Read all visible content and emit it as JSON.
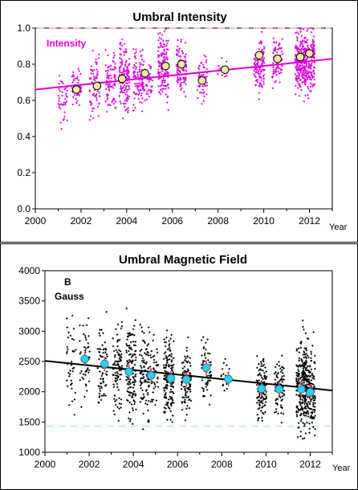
{
  "chart_data": [
    {
      "type": "scatter",
      "title": "Umbral Intensity",
      "xlabel": "Year",
      "ylabel": "",
      "xlim": [
        2000,
        2013
      ],
      "ylim": [
        0.0,
        1.0
      ],
      "x_ticks": [
        "2000",
        "2002",
        "2004",
        "2006",
        "2008",
        "2010",
        "2012"
      ],
      "y_ticks": [
        "0.0",
        "0.2",
        "0.4",
        "0.6",
        "0.8",
        "1.0"
      ],
      "annotation": "Intensity",
      "colors": {
        "points": "#e000e0",
        "trend": "#e000e0",
        "reference": "#ffc0c0",
        "means_fill": "#f2e6a0"
      },
      "reference_line": 1.0,
      "trend": {
        "x": [
          2000,
          2013
        ],
        "y": [
          0.66,
          0.83
        ]
      },
      "clusters": [
        {
          "x": 2001.2,
          "mean": 0.62,
          "spread": 0.06,
          "n": 40
        },
        {
          "x": 2001.8,
          "mean": 0.66,
          "spread": 0.06,
          "n": 50
        },
        {
          "x": 2002.6,
          "mean": 0.68,
          "spread": 0.08,
          "n": 70
        },
        {
          "x": 2003.3,
          "mean": 0.7,
          "spread": 0.08,
          "n": 90
        },
        {
          "x": 2003.9,
          "mean": 0.72,
          "spread": 0.09,
          "n": 140
        },
        {
          "x": 2004.5,
          "mean": 0.73,
          "spread": 0.08,
          "n": 90
        },
        {
          "x": 2004.9,
          "mean": 0.72,
          "spread": 0.06,
          "n": 50
        },
        {
          "x": 2005.6,
          "mean": 0.79,
          "spread": 0.09,
          "n": 150
        },
        {
          "x": 2006.4,
          "mean": 0.78,
          "spread": 0.07,
          "n": 100
        },
        {
          "x": 2007.3,
          "mean": 0.72,
          "spread": 0.06,
          "n": 60
        },
        {
          "x": 2008.2,
          "mean": 0.77,
          "spread": 0.03,
          "n": 20
        },
        {
          "x": 2009.8,
          "mean": 0.8,
          "spread": 0.07,
          "n": 120
        },
        {
          "x": 2010.6,
          "mean": 0.81,
          "spread": 0.06,
          "n": 80
        },
        {
          "x": 2011.6,
          "mean": 0.81,
          "spread": 0.08,
          "n": 210
        },
        {
          "x": 2012.0,
          "mean": 0.82,
          "spread": 0.08,
          "n": 170
        }
      ],
      "means": {
        "x": [
          2001.8,
          2002.7,
          2003.8,
          2004.8,
          2005.7,
          2006.4,
          2007.3,
          2008.3,
          2009.8,
          2010.6,
          2011.6,
          2012.0
        ],
        "y": [
          0.66,
          0.68,
          0.72,
          0.75,
          0.79,
          0.8,
          0.71,
          0.77,
          0.85,
          0.83,
          0.84,
          0.86
        ]
      }
    },
    {
      "type": "scatter",
      "title": "Umbral Magnetic Field",
      "xlabel": "Year",
      "ylabel": "",
      "xlim": [
        2000,
        2013
      ],
      "ylim": [
        1000,
        4000
      ],
      "x_ticks": [
        "2000",
        "2002",
        "2004",
        "2006",
        "2008",
        "2010",
        "2012"
      ],
      "y_ticks": [
        "1000",
        "1500",
        "2000",
        "2500",
        "3000",
        "3500",
        "4000"
      ],
      "annotation_title": "B",
      "annotation_unit": "Gauss",
      "colors": {
        "points": "#000000",
        "trend": "#000000",
        "reference": "#c0eef6",
        "means_fill": "#33ccee",
        "sigma": "#ff3030"
      },
      "reference_line": 1430,
      "trend": {
        "x": [
          2000,
          2013
        ],
        "y": [
          2510,
          2020
        ]
      },
      "clusters": [
        {
          "x": 2001.2,
          "mean": 2550,
          "spread": 350,
          "n": 40
        },
        {
          "x": 2001.8,
          "mean": 2520,
          "spread": 330,
          "n": 50
        },
        {
          "x": 2002.6,
          "mean": 2450,
          "spread": 360,
          "n": 70
        },
        {
          "x": 2003.3,
          "mean": 2380,
          "spread": 340,
          "n": 90
        },
        {
          "x": 2003.9,
          "mean": 2350,
          "spread": 380,
          "n": 140
        },
        {
          "x": 2004.5,
          "mean": 2300,
          "spread": 340,
          "n": 90
        },
        {
          "x": 2004.9,
          "mean": 2280,
          "spread": 300,
          "n": 50
        },
        {
          "x": 2005.6,
          "mean": 2230,
          "spread": 340,
          "n": 150
        },
        {
          "x": 2006.4,
          "mean": 2200,
          "spread": 300,
          "n": 100
        },
        {
          "x": 2007.3,
          "mean": 2350,
          "spread": 300,
          "n": 60
        },
        {
          "x": 2008.2,
          "mean": 2220,
          "spread": 150,
          "n": 20
        },
        {
          "x": 2009.8,
          "mean": 2050,
          "spread": 250,
          "n": 120
        },
        {
          "x": 2010.6,
          "mean": 2050,
          "spread": 260,
          "n": 80
        },
        {
          "x": 2011.6,
          "mean": 2100,
          "spread": 380,
          "n": 210
        },
        {
          "x": 2012.0,
          "mean": 2050,
          "spread": 330,
          "n": 170
        }
      ],
      "means": {
        "x": [
          2001.8,
          2002.7,
          2003.8,
          2004.8,
          2005.7,
          2006.4,
          2007.3,
          2008.3,
          2009.8,
          2010.6,
          2011.6,
          2012.0
        ],
        "y": [
          2540,
          2460,
          2330,
          2270,
          2220,
          2200,
          2400,
          2210,
          2050,
          2040,
          2040,
          1990
        ]
      }
    }
  ]
}
